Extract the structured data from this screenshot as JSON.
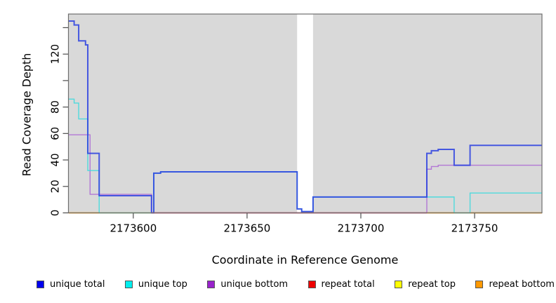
{
  "chart_data": {
    "type": "line",
    "subtype": "step-coverage-plot",
    "title": "",
    "xlabel": "Coordinate in Reference Genome",
    "ylabel": "Read Coverage Depth",
    "x_domain": [
      2173571.5,
      2173779.6
    ],
    "y_domain": [
      0,
      150.3
    ],
    "x_ticks": [
      {
        "value": 2173600,
        "label": "2173600"
      },
      {
        "value": 2173650,
        "label": "2173650"
      },
      {
        "value": 2173700,
        "label": "2173700"
      },
      {
        "value": 2173750,
        "label": "2173750"
      }
    ],
    "y_ticks": [
      {
        "value": 0,
        "label": "0",
        "show_label": true
      },
      {
        "value": 20,
        "label": "20",
        "show_label": true
      },
      {
        "value": 40,
        "label": "40",
        "show_label": true
      },
      {
        "value": 60,
        "label": "60",
        "show_label": true
      },
      {
        "value": 80,
        "label": "80",
        "show_label": true
      },
      {
        "value": 100,
        "label": "100",
        "show_label": false
      },
      {
        "value": 120,
        "label": "120",
        "show_label": true
      },
      {
        "value": 140,
        "label": "140",
        "show_label": false
      }
    ],
    "gap_region": {
      "x_start": 2173672,
      "x_end": 2173679
    },
    "styles": {
      "plot_bg": "#d9d9d9",
      "gap_fill": "#ffffff",
      "border_color": "#6e6e6e",
      "tick_color": "#4d4d4d",
      "text_color": "#000000"
    },
    "series": [
      {
        "name": "repeat total",
        "color": "#dd2222",
        "opacity": 0.9,
        "width": 1.2,
        "points": [
          [
            2173571,
            0
          ],
          [
            2173780,
            0
          ]
        ]
      },
      {
        "name": "repeat top",
        "color": "#f2f200",
        "opacity": 0.9,
        "width": 1.2,
        "points": [
          [
            2173571,
            0
          ],
          [
            2173780,
            0
          ]
        ]
      },
      {
        "name": "repeat bottom",
        "color": "#ff9900",
        "opacity": 0.9,
        "width": 1.2,
        "points": [
          [
            2173571,
            0
          ],
          [
            2173780,
            0
          ]
        ]
      },
      {
        "name": "unique bottom",
        "color": "#a75fd3",
        "opacity": 0.8,
        "width": 1.4,
        "points": [
          [
            2173571,
            59
          ],
          [
            2173581,
            14
          ],
          [
            2173608,
            0
          ],
          [
            2173729,
            33
          ],
          [
            2173731,
            35
          ],
          [
            2173734,
            36
          ],
          [
            2173780,
            36
          ]
        ]
      },
      {
        "name": "unique top",
        "color": "#3fd9dd",
        "opacity": 0.9,
        "width": 1.4,
        "points": [
          [
            2173571,
            86
          ],
          [
            2173574,
            83
          ],
          [
            2173576,
            71
          ],
          [
            2173580,
            32
          ],
          [
            2173585,
            0
          ],
          [
            2173609,
            30
          ],
          [
            2173612,
            31
          ],
          [
            2173672,
            3
          ],
          [
            2173674,
            1
          ],
          [
            2173679,
            12
          ],
          [
            2173741,
            0
          ],
          [
            2173748,
            15
          ],
          [
            2173780,
            15
          ]
        ]
      },
      {
        "name": "unique total",
        "color": "#2a3fe0",
        "opacity": 0.85,
        "width": 2.0,
        "points": [
          [
            2173571,
            145
          ],
          [
            2173574,
            142
          ],
          [
            2173576,
            130
          ],
          [
            2173579,
            127
          ],
          [
            2173580,
            45
          ],
          [
            2173585,
            13
          ],
          [
            2173608,
            0
          ],
          [
            2173609,
            30
          ],
          [
            2173612,
            31
          ],
          [
            2173672,
            3
          ],
          [
            2173674,
            1
          ],
          [
            2173679,
            12
          ],
          [
            2173729,
            45
          ],
          [
            2173731,
            47
          ],
          [
            2173734,
            48
          ],
          [
            2173741,
            36
          ],
          [
            2173748,
            51
          ],
          [
            2173780,
            51
          ]
        ]
      }
    ],
    "baseline_segments": [
      {
        "x_start": 2173571,
        "x_end": 2173585,
        "color": "#ff9900"
      },
      {
        "x_start": 2173585,
        "x_end": 2173608,
        "color": "#8fcc8f"
      },
      {
        "x_start": 2173608,
        "x_end": 2173729,
        "color": "#cc3366"
      },
      {
        "x_start": 2173729,
        "x_end": 2173741,
        "color": "#ff9900"
      },
      {
        "x_start": 2173741,
        "x_end": 2173748,
        "color": "#8fcc8f"
      },
      {
        "x_start": 2173748,
        "x_end": 2173780,
        "color": "#ff9900"
      }
    ],
    "legend": [
      {
        "label": "unique total",
        "color": "#0000ee"
      },
      {
        "label": "unique top",
        "color": "#00eeee"
      },
      {
        "label": "unique bottom",
        "color": "#9922cc"
      },
      {
        "label": "repeat total",
        "color": "#ee0000"
      },
      {
        "label": "repeat top",
        "color": "#ffff00"
      },
      {
        "label": "repeat bottom",
        "color": "#ff9900"
      }
    ]
  }
}
